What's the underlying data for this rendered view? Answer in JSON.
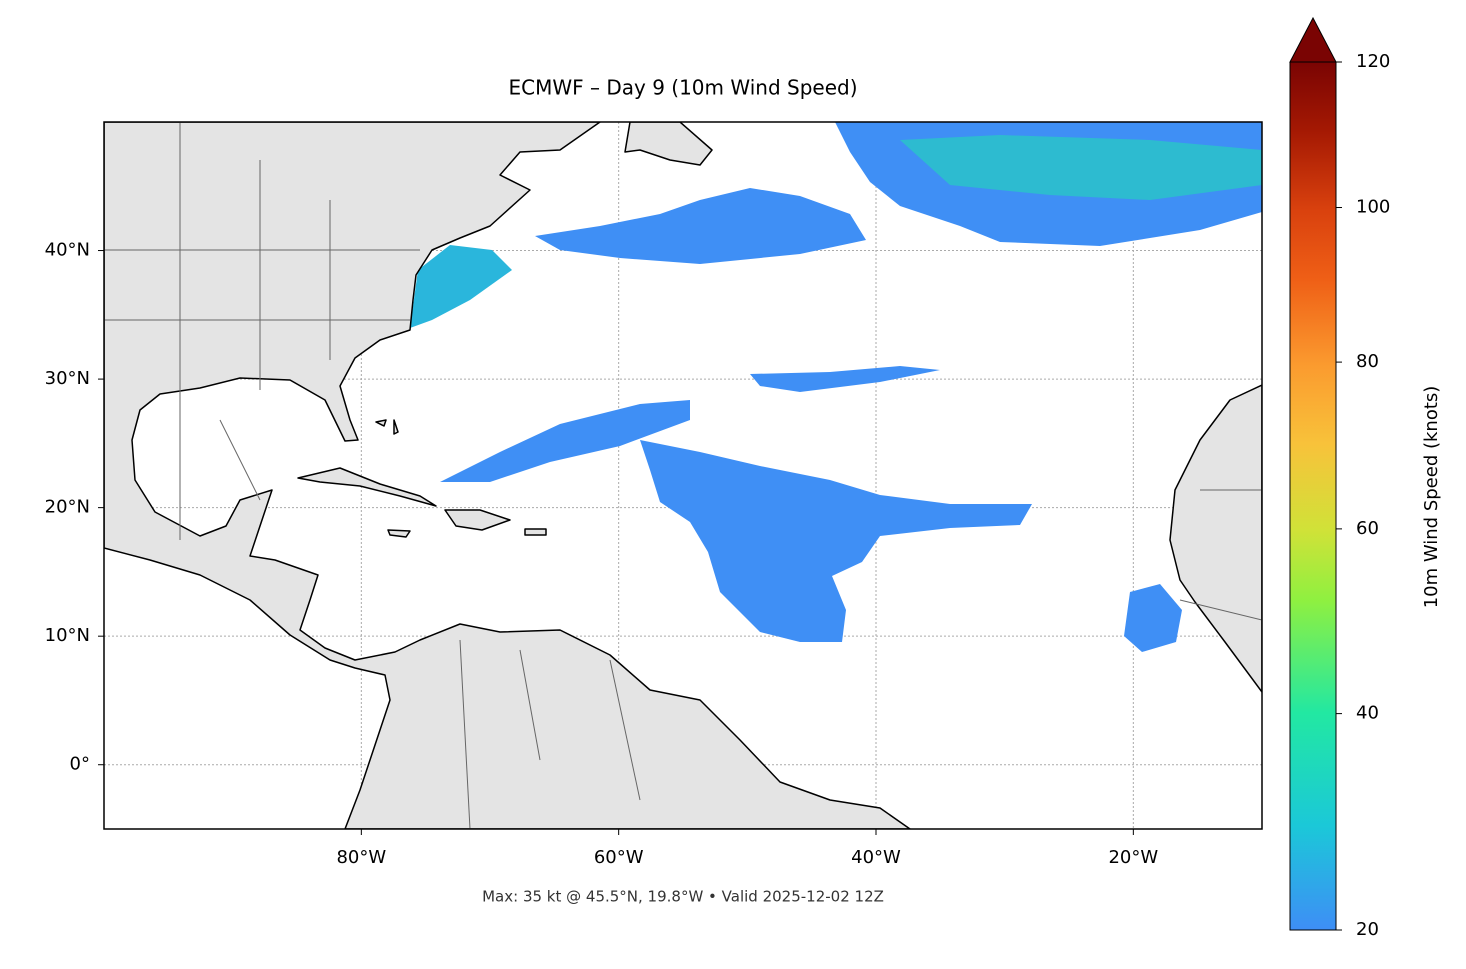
{
  "title": "ECMWF – Day 9 (10m Wind Speed)",
  "footer": "Max: 35 kt @ 45.5°N, 19.8°W • Valid 2025-12-02 12Z",
  "map": {
    "xlim": [
      -100,
      -10
    ],
    "ylim": [
      -5,
      50
    ],
    "grid": true,
    "xticks": [
      {
        "value": -80,
        "label": "80°W"
      },
      {
        "value": -60,
        "label": "60°W"
      },
      {
        "value": -40,
        "label": "40°W"
      },
      {
        "value": -20,
        "label": "20°W"
      }
    ],
    "yticks": [
      {
        "value": 0,
        "label": "0°"
      },
      {
        "value": 10,
        "label": "10°N"
      },
      {
        "value": 20,
        "label": "20°N"
      },
      {
        "value": 30,
        "label": "30°N"
      },
      {
        "value": 40,
        "label": "40°N"
      }
    ]
  },
  "colorbar": {
    "label": "10m Wind Speed (knots)",
    "lim": [
      20,
      120
    ],
    "ticks": [
      20,
      40,
      60,
      80,
      100,
      120
    ],
    "norm": "power",
    "gamma": 0.7,
    "extend": "max"
  }
}
